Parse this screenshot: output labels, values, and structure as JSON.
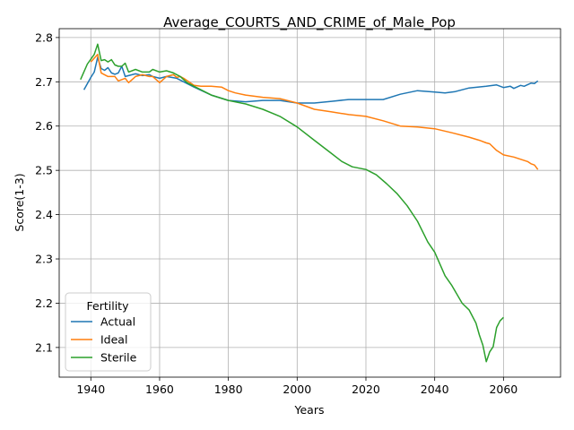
{
  "chart_data": {
    "type": "line",
    "title": "Average_COURTS_AND_CRIME_of_Male_Pop",
    "xlabel": "Years",
    "ylabel": "Score(1-3)",
    "xlim": [
      1930.8,
      2076.6
    ],
    "ylim": [
      2.033,
      2.82
    ],
    "xticks": [
      1940,
      1960,
      1980,
      2000,
      2020,
      2040,
      2060
    ],
    "yticks": [
      2.1,
      2.2,
      2.3,
      2.4,
      2.5,
      2.6,
      2.7,
      2.8
    ],
    "grid": true,
    "legend": {
      "title": "Fertility",
      "placement": "lower-left"
    },
    "series": [
      {
        "name": "Actual",
        "color": "#1f77b4",
        "x": [
          1938,
          1940,
          1941,
          1942,
          1943,
          1944,
          1945,
          1946,
          1947,
          1948,
          1949,
          1950,
          1951,
          1953,
          1955,
          1957,
          1958,
          1960,
          1962,
          1965,
          1970,
          1975,
          1980,
          1985,
          1990,
          1995,
          2000,
          2005,
          2010,
          2015,
          2020,
          2025,
          2030,
          2035,
          2040,
          2043,
          2046,
          2050,
          2055,
          2058,
          2060,
          2062,
          2063,
          2065,
          2066,
          2068,
          2069,
          2070
        ],
        "y": [
          2.682,
          2.71,
          2.722,
          2.755,
          2.73,
          2.726,
          2.732,
          2.72,
          2.717,
          2.72,
          2.735,
          2.712,
          2.714,
          2.718,
          2.714,
          2.716,
          2.712,
          2.708,
          2.712,
          2.708,
          2.688,
          2.67,
          2.658,
          2.655,
          2.658,
          2.658,
          2.652,
          2.652,
          2.656,
          2.66,
          2.66,
          2.66,
          2.672,
          2.68,
          2.677,
          2.675,
          2.678,
          2.686,
          2.69,
          2.693,
          2.687,
          2.69,
          2.685,
          2.692,
          2.69,
          2.697,
          2.696,
          2.702
        ]
      },
      {
        "name": "Ideal",
        "color": "#ff7f0e",
        "x": [
          1940,
          1942,
          1943,
          1944,
          1945,
          1947,
          1948,
          1950,
          1951,
          1953,
          1955,
          1957,
          1958,
          1960,
          1962,
          1964,
          1965,
          1966,
          1967,
          1970,
          1972,
          1975,
          1978,
          1980,
          1982,
          1985,
          1990,
          1995,
          2000,
          2005,
          2010,
          2015,
          2020,
          2025,
          2030,
          2035,
          2040,
          2045,
          2050,
          2053,
          2055,
          2056,
          2058,
          2060,
          2063,
          2065,
          2067,
          2068,
          2069,
          2070
        ],
        "y": [
          2.745,
          2.762,
          2.72,
          2.716,
          2.712,
          2.712,
          2.702,
          2.708,
          2.698,
          2.712,
          2.716,
          2.712,
          2.712,
          2.698,
          2.712,
          2.716,
          2.71,
          2.712,
          2.708,
          2.692,
          2.69,
          2.69,
          2.688,
          2.68,
          2.675,
          2.67,
          2.665,
          2.662,
          2.652,
          2.638,
          2.632,
          2.626,
          2.622,
          2.612,
          2.6,
          2.598,
          2.594,
          2.585,
          2.575,
          2.568,
          2.562,
          2.56,
          2.545,
          2.535,
          2.53,
          2.525,
          2.52,
          2.515,
          2.512,
          2.502
        ]
      },
      {
        "name": "Sterile",
        "color": "#2ca02c",
        "x": [
          1937,
          1939,
          1941,
          1942,
          1943,
          1944,
          1945,
          1946,
          1947,
          1948,
          1949,
          1950,
          1951,
          1953,
          1955,
          1957,
          1958,
          1960,
          1962,
          1964,
          1966,
          1968,
          1970,
          1975,
          1980,
          1985,
          1990,
          1995,
          2000,
          2005,
          2010,
          2013,
          2016,
          2020,
          2023,
          2026,
          2029,
          2032,
          2035,
          2038,
          2040,
          2043,
          2045,
          2048,
          2050,
          2052,
          2053,
          2054,
          2055,
          2056,
          2057,
          2058,
          2059,
          2060
        ],
        "y": [
          2.705,
          2.74,
          2.762,
          2.785,
          2.748,
          2.75,
          2.745,
          2.75,
          2.738,
          2.735,
          2.735,
          2.742,
          2.722,
          2.728,
          2.722,
          2.722,
          2.728,
          2.722,
          2.725,
          2.72,
          2.712,
          2.698,
          2.69,
          2.67,
          2.658,
          2.65,
          2.638,
          2.622,
          2.598,
          2.568,
          2.538,
          2.52,
          2.508,
          2.502,
          2.49,
          2.47,
          2.448,
          2.42,
          2.385,
          2.338,
          2.315,
          2.262,
          2.24,
          2.2,
          2.185,
          2.155,
          2.128,
          2.105,
          2.068,
          2.09,
          2.102,
          2.145,
          2.16,
          2.168
        ]
      }
    ]
  }
}
